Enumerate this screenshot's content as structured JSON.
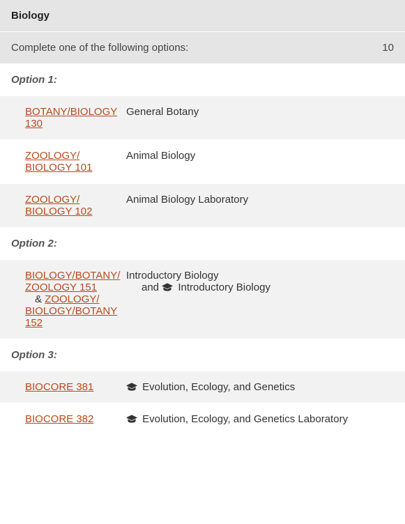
{
  "section_title": "Biology",
  "instruction": "Complete one of the following options:",
  "credits": "10",
  "options": [
    {
      "label": "Option 1:",
      "courses": [
        {
          "links": [
            "BOTANY/​BIOLOGY  130"
          ],
          "title": "General Botany",
          "alt": false
        },
        {
          "links": [
            "ZOOLOGY/​BIOLOGY  101"
          ],
          "title": "Animal Biology",
          "alt": true
        },
        {
          "links": [
            "ZOOLOGY/​BIOLOGY  102"
          ],
          "title": "Animal Biology Laboratory",
          "alt": false
        }
      ]
    },
    {
      "label": "Option 2:",
      "courses": [
        {
          "links": [
            "BIOLOGY/​BOTANY/​ZOOLOGY  151",
            "ZOOLOGY/​BIOLOGY/​BOTANY  152"
          ],
          "amp": "& ",
          "title": "Introductory Biology",
          "and_title": "Introductory Biology",
          "and_prefix": "and ",
          "grad": true,
          "alt": false
        }
      ]
    },
    {
      "label": "Option 3:",
      "courses": [
        {
          "links": [
            "BIOCORE 381"
          ],
          "title": "Evolution, Ecology, and Genetics",
          "grad": true,
          "alt": false
        },
        {
          "links": [
            "BIOCORE 382"
          ],
          "title": "Evolution, Ecology, and Genetics Laboratory",
          "grad": true,
          "alt": true
        }
      ]
    }
  ],
  "colors": {
    "link": "#b84a1e",
    "header_bg": "#e5e5e5",
    "row_bg": "#f2f2f2",
    "icon": "#333"
  }
}
